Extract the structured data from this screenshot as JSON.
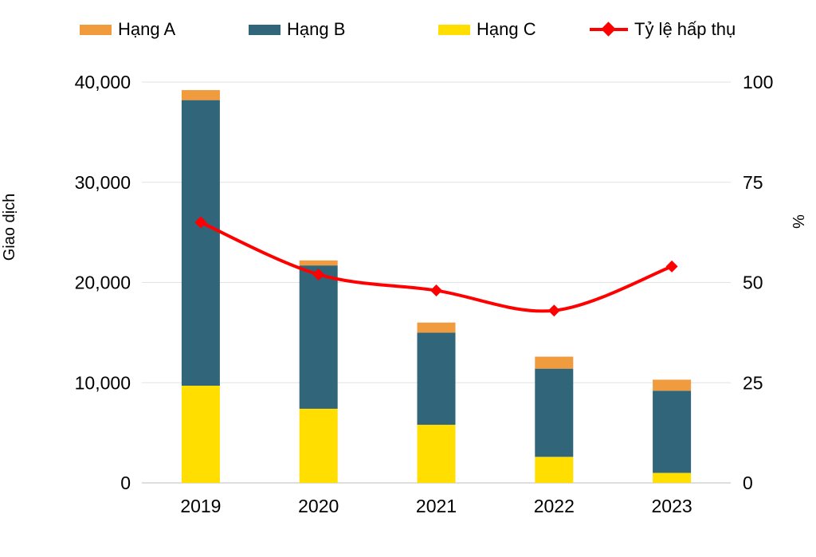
{
  "chart_data": {
    "type": "bar",
    "subtype": "stacked-bars-with-line",
    "title": "",
    "categories": [
      "2019",
      "2020",
      "2021",
      "2022",
      "2023"
    ],
    "series": [
      {
        "name": "Hạng A",
        "type": "bar",
        "stack": "giao-dich",
        "color": "#EF9B3E",
        "values": [
          1000,
          500,
          1000,
          1200,
          1100
        ]
      },
      {
        "name": "Hạng B",
        "type": "bar",
        "stack": "giao-dich",
        "color": "#30657A",
        "values": [
          28500,
          14300,
          9200,
          8800,
          8200
        ]
      },
      {
        "name": "Hạng C",
        "type": "bar",
        "stack": "giao-dich",
        "color": "#FFDE00",
        "values": [
          9700,
          7400,
          5800,
          2600,
          1000
        ]
      },
      {
        "name": "Tỷ lệ hấp thụ",
        "type": "line",
        "axis": "right",
        "color": "#FF0000",
        "marker": "diamond",
        "values": [
          65,
          52,
          48,
          43,
          54
        ]
      }
    ],
    "stack_order_bottom_to_top": [
      "Hạng C",
      "Hạng B",
      "Hạng A"
    ],
    "left_axis": {
      "title": "Giao dịch",
      "min": 0,
      "max": 40000,
      "ticks": [
        "0",
        "10,000",
        "20,000",
        "30,000",
        "40,000"
      ]
    },
    "right_axis": {
      "title": "%",
      "min": 0,
      "max": 100,
      "ticks": [
        "0",
        "25",
        "50",
        "75",
        "100"
      ]
    },
    "legend_position": "top",
    "grid": true,
    "colors": {
      "grid": "#E2E2E2",
      "axis_line": "#D4D4D4",
      "text": "#000000"
    }
  }
}
